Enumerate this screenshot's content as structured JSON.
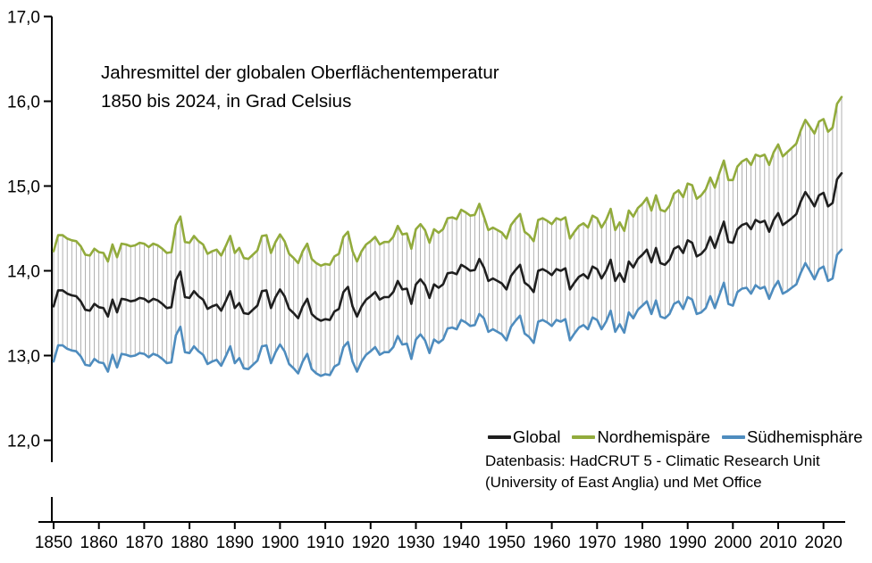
{
  "title": {
    "line1": "Jahresmittel der globalen Oberflächentemperatur",
    "line2": "1850 bis 2024, in Grad Celsius"
  },
  "source": {
    "line1": "Datenbasis: HadCRUT 5 - Climatic Research Unit",
    "line2": "(University of East Anglia) und Met Office"
  },
  "legend": {
    "items": [
      {
        "label": "Global",
        "color": "#1f1f1f"
      },
      {
        "label": "Nordhemispäre",
        "color": "#92ab3c"
      },
      {
        "label": "Südhemisphäre",
        "color": "#4e8cbe"
      }
    ]
  },
  "chart_data": {
    "type": "line",
    "title": "Jahresmittel der globalen Oberflächentemperatur 1850 bis 2024, in Grad Celsius",
    "unit": "Grad Celsius",
    "x0": 1850,
    "dx": 1,
    "xlim": [
      1850,
      2024
    ],
    "ylim": [
      11.7,
      17.0
    ],
    "grid": false,
    "legend_position": "inside-bottom-right",
    "y_tick_values": [
      17,
      16,
      15,
      14,
      13,
      12
    ],
    "y_tick_labels": [
      "17,0",
      "16,0",
      "15,0",
      "14,0",
      "13,0",
      "12,0"
    ],
    "x_tick_values": [
      1850,
      1860,
      1870,
      1880,
      1890,
      1900,
      1910,
      1920,
      1930,
      1940,
      1950,
      1960,
      1970,
      1980,
      1990,
      2000,
      2010,
      2020
    ],
    "band": {
      "between": [
        "Nordhemispäre",
        "Südhemisphäre"
      ],
      "style": "vertical-hatch-per-year",
      "color": "#9e9e9e"
    },
    "series": [
      {
        "name": "Global",
        "color": "#1f1f1f",
        "values": [
          13.58,
          13.77,
          13.77,
          13.73,
          13.71,
          13.7,
          13.64,
          13.54,
          13.53,
          13.61,
          13.57,
          13.56,
          13.46,
          13.66,
          13.51,
          13.67,
          13.66,
          13.64,
          13.65,
          13.68,
          13.67,
          13.63,
          13.67,
          13.65,
          13.61,
          13.56,
          13.57,
          13.89,
          13.99,
          13.69,
          13.68,
          13.76,
          13.7,
          13.66,
          13.55,
          13.58,
          13.6,
          13.53,
          13.64,
          13.76,
          13.56,
          13.62,
          13.5,
          13.49,
          13.54,
          13.59,
          13.76,
          13.77,
          13.56,
          13.69,
          13.78,
          13.7,
          13.55,
          13.5,
          13.44,
          13.58,
          13.67,
          13.49,
          13.44,
          13.41,
          13.43,
          13.42,
          13.52,
          13.55,
          13.75,
          13.81,
          13.58,
          13.46,
          13.58,
          13.66,
          13.7,
          13.75,
          13.66,
          13.69,
          13.69,
          13.75,
          13.88,
          13.78,
          13.79,
          13.61,
          13.84,
          13.9,
          13.83,
          13.68,
          13.84,
          13.8,
          13.84,
          13.97,
          13.98,
          13.96,
          14.07,
          14.04,
          14.0,
          14.01,
          14.14,
          14.04,
          13.88,
          13.91,
          13.88,
          13.85,
          13.78,
          13.94,
          14.01,
          14.07,
          13.86,
          13.82,
          13.75,
          14.0,
          14.02,
          13.99,
          13.95,
          14.02,
          14.0,
          14.03,
          13.78,
          13.86,
          13.93,
          13.96,
          13.91,
          14.05,
          14.02,
          13.91,
          14.0,
          14.13,
          13.88,
          13.97,
          13.87,
          14.11,
          14.04,
          14.14,
          14.19,
          14.25,
          14.1,
          14.27,
          14.09,
          14.07,
          14.13,
          14.26,
          14.29,
          14.21,
          14.36,
          14.33,
          14.17,
          14.2,
          14.26,
          14.4,
          14.27,
          14.43,
          14.58,
          14.34,
          14.33,
          14.49,
          14.54,
          14.56,
          14.49,
          14.6,
          14.57,
          14.59,
          14.46,
          14.6,
          14.68,
          14.54,
          14.58,
          14.62,
          14.67,
          14.82,
          14.93,
          14.85,
          14.76,
          14.89,
          14.92,
          14.76,
          14.8,
          15.08,
          15.15
        ]
      },
      {
        "name": "Nordhemispäre",
        "color": "#92ab3c",
        "values": [
          14.23,
          14.42,
          14.42,
          14.38,
          14.36,
          14.35,
          14.29,
          14.19,
          14.18,
          14.26,
          14.22,
          14.21,
          14.11,
          14.31,
          14.16,
          14.32,
          14.31,
          14.29,
          14.3,
          14.33,
          14.32,
          14.28,
          14.32,
          14.3,
          14.26,
          14.21,
          14.22,
          14.54,
          14.64,
          14.34,
          14.33,
          14.41,
          14.35,
          14.31,
          14.2,
          14.23,
          14.25,
          14.18,
          14.29,
          14.41,
          14.21,
          14.27,
          14.15,
          14.14,
          14.19,
          14.24,
          14.41,
          14.42,
          14.21,
          14.34,
          14.43,
          14.35,
          14.2,
          14.15,
          14.09,
          14.23,
          14.32,
          14.14,
          14.09,
          14.06,
          14.08,
          14.07,
          14.17,
          14.2,
          14.4,
          14.46,
          14.23,
          14.11,
          14.23,
          14.31,
          14.35,
          14.4,
          14.31,
          14.34,
          14.34,
          14.4,
          14.53,
          14.43,
          14.44,
          14.26,
          14.49,
          14.55,
          14.48,
          14.33,
          14.49,
          14.45,
          14.49,
          14.62,
          14.63,
          14.61,
          14.72,
          14.69,
          14.65,
          14.66,
          14.79,
          14.64,
          14.48,
          14.51,
          14.48,
          14.45,
          14.38,
          14.54,
          14.61,
          14.67,
          14.46,
          14.42,
          14.35,
          14.6,
          14.62,
          14.59,
          14.55,
          14.62,
          14.6,
          14.63,
          14.38,
          14.46,
          14.53,
          14.56,
          14.51,
          14.65,
          14.62,
          14.51,
          14.6,
          14.73,
          14.48,
          14.57,
          14.47,
          14.71,
          14.64,
          14.74,
          14.79,
          14.86,
          14.71,
          14.89,
          14.72,
          14.7,
          14.77,
          14.91,
          14.95,
          14.87,
          15.03,
          15.01,
          14.85,
          14.89,
          14.96,
          15.1,
          14.98,
          15.15,
          15.3,
          15.07,
          15.07,
          15.23,
          15.29,
          15.32,
          15.25,
          15.37,
          15.35,
          15.37,
          15.25,
          15.4,
          15.49,
          15.35,
          15.4,
          15.45,
          15.5,
          15.66,
          15.78,
          15.7,
          15.62,
          15.76,
          15.79,
          15.64,
          15.69,
          15.97,
          16.05
        ]
      },
      {
        "name": "Südhemisphäre",
        "color": "#4e8cbe",
        "values": [
          12.93,
          13.12,
          13.12,
          13.08,
          13.06,
          13.05,
          12.99,
          12.89,
          12.88,
          12.96,
          12.92,
          12.91,
          12.81,
          13.01,
          12.86,
          13.02,
          13.01,
          12.99,
          13.0,
          13.03,
          13.02,
          12.98,
          13.02,
          13.0,
          12.96,
          12.91,
          12.92,
          13.24,
          13.34,
          13.04,
          13.03,
          13.11,
          13.05,
          13.01,
          12.9,
          12.93,
          12.95,
          12.88,
          12.99,
          13.11,
          12.91,
          12.97,
          12.85,
          12.84,
          12.89,
          12.94,
          13.11,
          13.12,
          12.91,
          13.04,
          13.13,
          13.05,
          12.9,
          12.85,
          12.79,
          12.93,
          13.02,
          12.84,
          12.79,
          12.76,
          12.78,
          12.77,
          12.87,
          12.9,
          13.1,
          13.16,
          12.93,
          12.81,
          12.93,
          13.01,
          13.05,
          13.1,
          13.01,
          13.04,
          13.04,
          13.1,
          13.23,
          13.13,
          13.14,
          12.96,
          13.19,
          13.25,
          13.18,
          13.03,
          13.19,
          13.15,
          13.19,
          13.32,
          13.33,
          13.31,
          13.42,
          13.39,
          13.35,
          13.36,
          13.49,
          13.44,
          13.28,
          13.31,
          13.28,
          13.25,
          13.18,
          13.34,
          13.41,
          13.47,
          13.26,
          13.22,
          13.15,
          13.4,
          13.42,
          13.39,
          13.35,
          13.42,
          13.4,
          13.43,
          13.18,
          13.26,
          13.33,
          13.36,
          13.31,
          13.45,
          13.42,
          13.31,
          13.4,
          13.53,
          13.28,
          13.37,
          13.27,
          13.51,
          13.44,
          13.54,
          13.59,
          13.64,
          13.49,
          13.65,
          13.46,
          13.44,
          13.49,
          13.61,
          13.64,
          13.55,
          13.69,
          13.66,
          13.49,
          13.51,
          13.56,
          13.7,
          13.56,
          13.71,
          13.86,
          13.61,
          13.59,
          13.75,
          13.79,
          13.8,
          13.73,
          13.83,
          13.79,
          13.81,
          13.67,
          13.8,
          13.88,
          13.73,
          13.76,
          13.8,
          13.84,
          13.98,
          14.09,
          14.0,
          13.9,
          14.02,
          14.05,
          13.88,
          13.91,
          14.19,
          14.25
        ]
      }
    ]
  }
}
